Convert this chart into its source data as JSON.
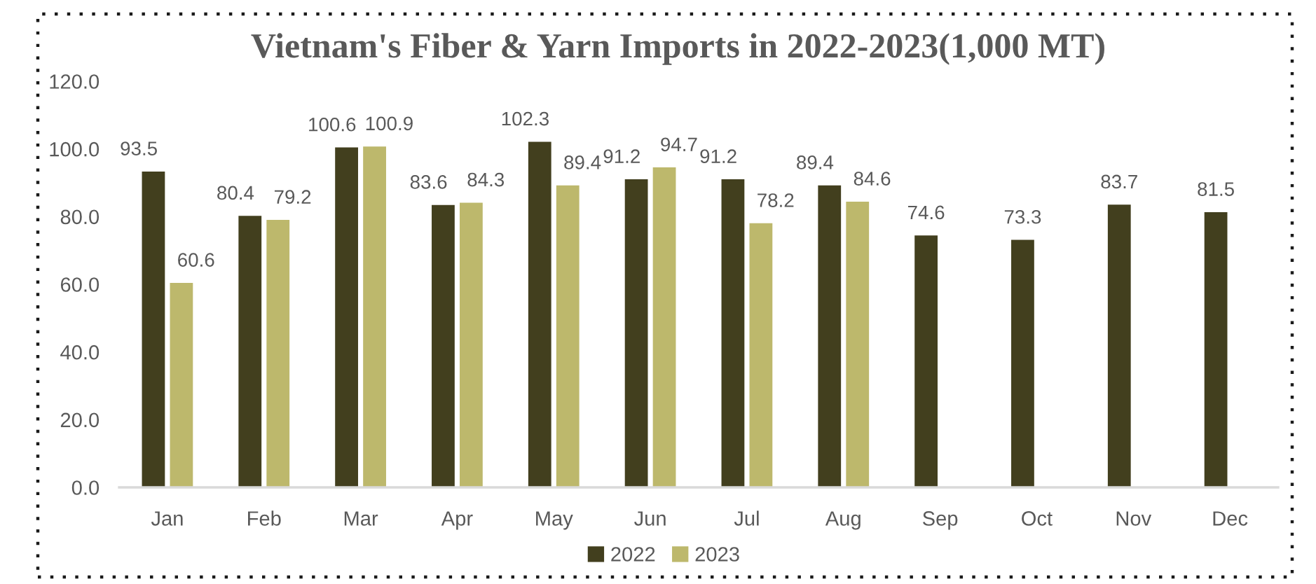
{
  "chart_data": {
    "type": "bar",
    "title": "Vietnam's Fiber & Yarn Imports in 2022-2023(1,000 MT)",
    "categories": [
      "Jan",
      "Feb",
      "Mar",
      "Apr",
      "May",
      "Jun",
      "Jul",
      "Aug",
      "Sep",
      "Oct",
      "Nov",
      "Dec"
    ],
    "series": [
      {
        "name": "2022",
        "color": "#423f1e",
        "values": [
          93.5,
          80.4,
          100.6,
          83.6,
          102.3,
          91.2,
          91.2,
          89.4,
          74.6,
          73.3,
          83.7,
          81.5
        ]
      },
      {
        "name": "2023",
        "color": "#bdb86c",
        "values": [
          60.6,
          79.2,
          100.9,
          84.3,
          89.4,
          94.7,
          78.2,
          84.6,
          null,
          null,
          null,
          null
        ]
      }
    ],
    "ylim": [
      0,
      120
    ],
    "yticks": [
      {
        "value": 0,
        "label": "0.0"
      },
      {
        "value": 20,
        "label": "20.0"
      },
      {
        "value": 40,
        "label": "40.0"
      },
      {
        "value": 60,
        "label": "60.0"
      },
      {
        "value": 80,
        "label": "80.0"
      },
      {
        "value": 100,
        "label": "100.0"
      },
      {
        "value": 120,
        "label": "120.0"
      }
    ],
    "data_labels": true,
    "grid": false,
    "legend": "bottom"
  }
}
